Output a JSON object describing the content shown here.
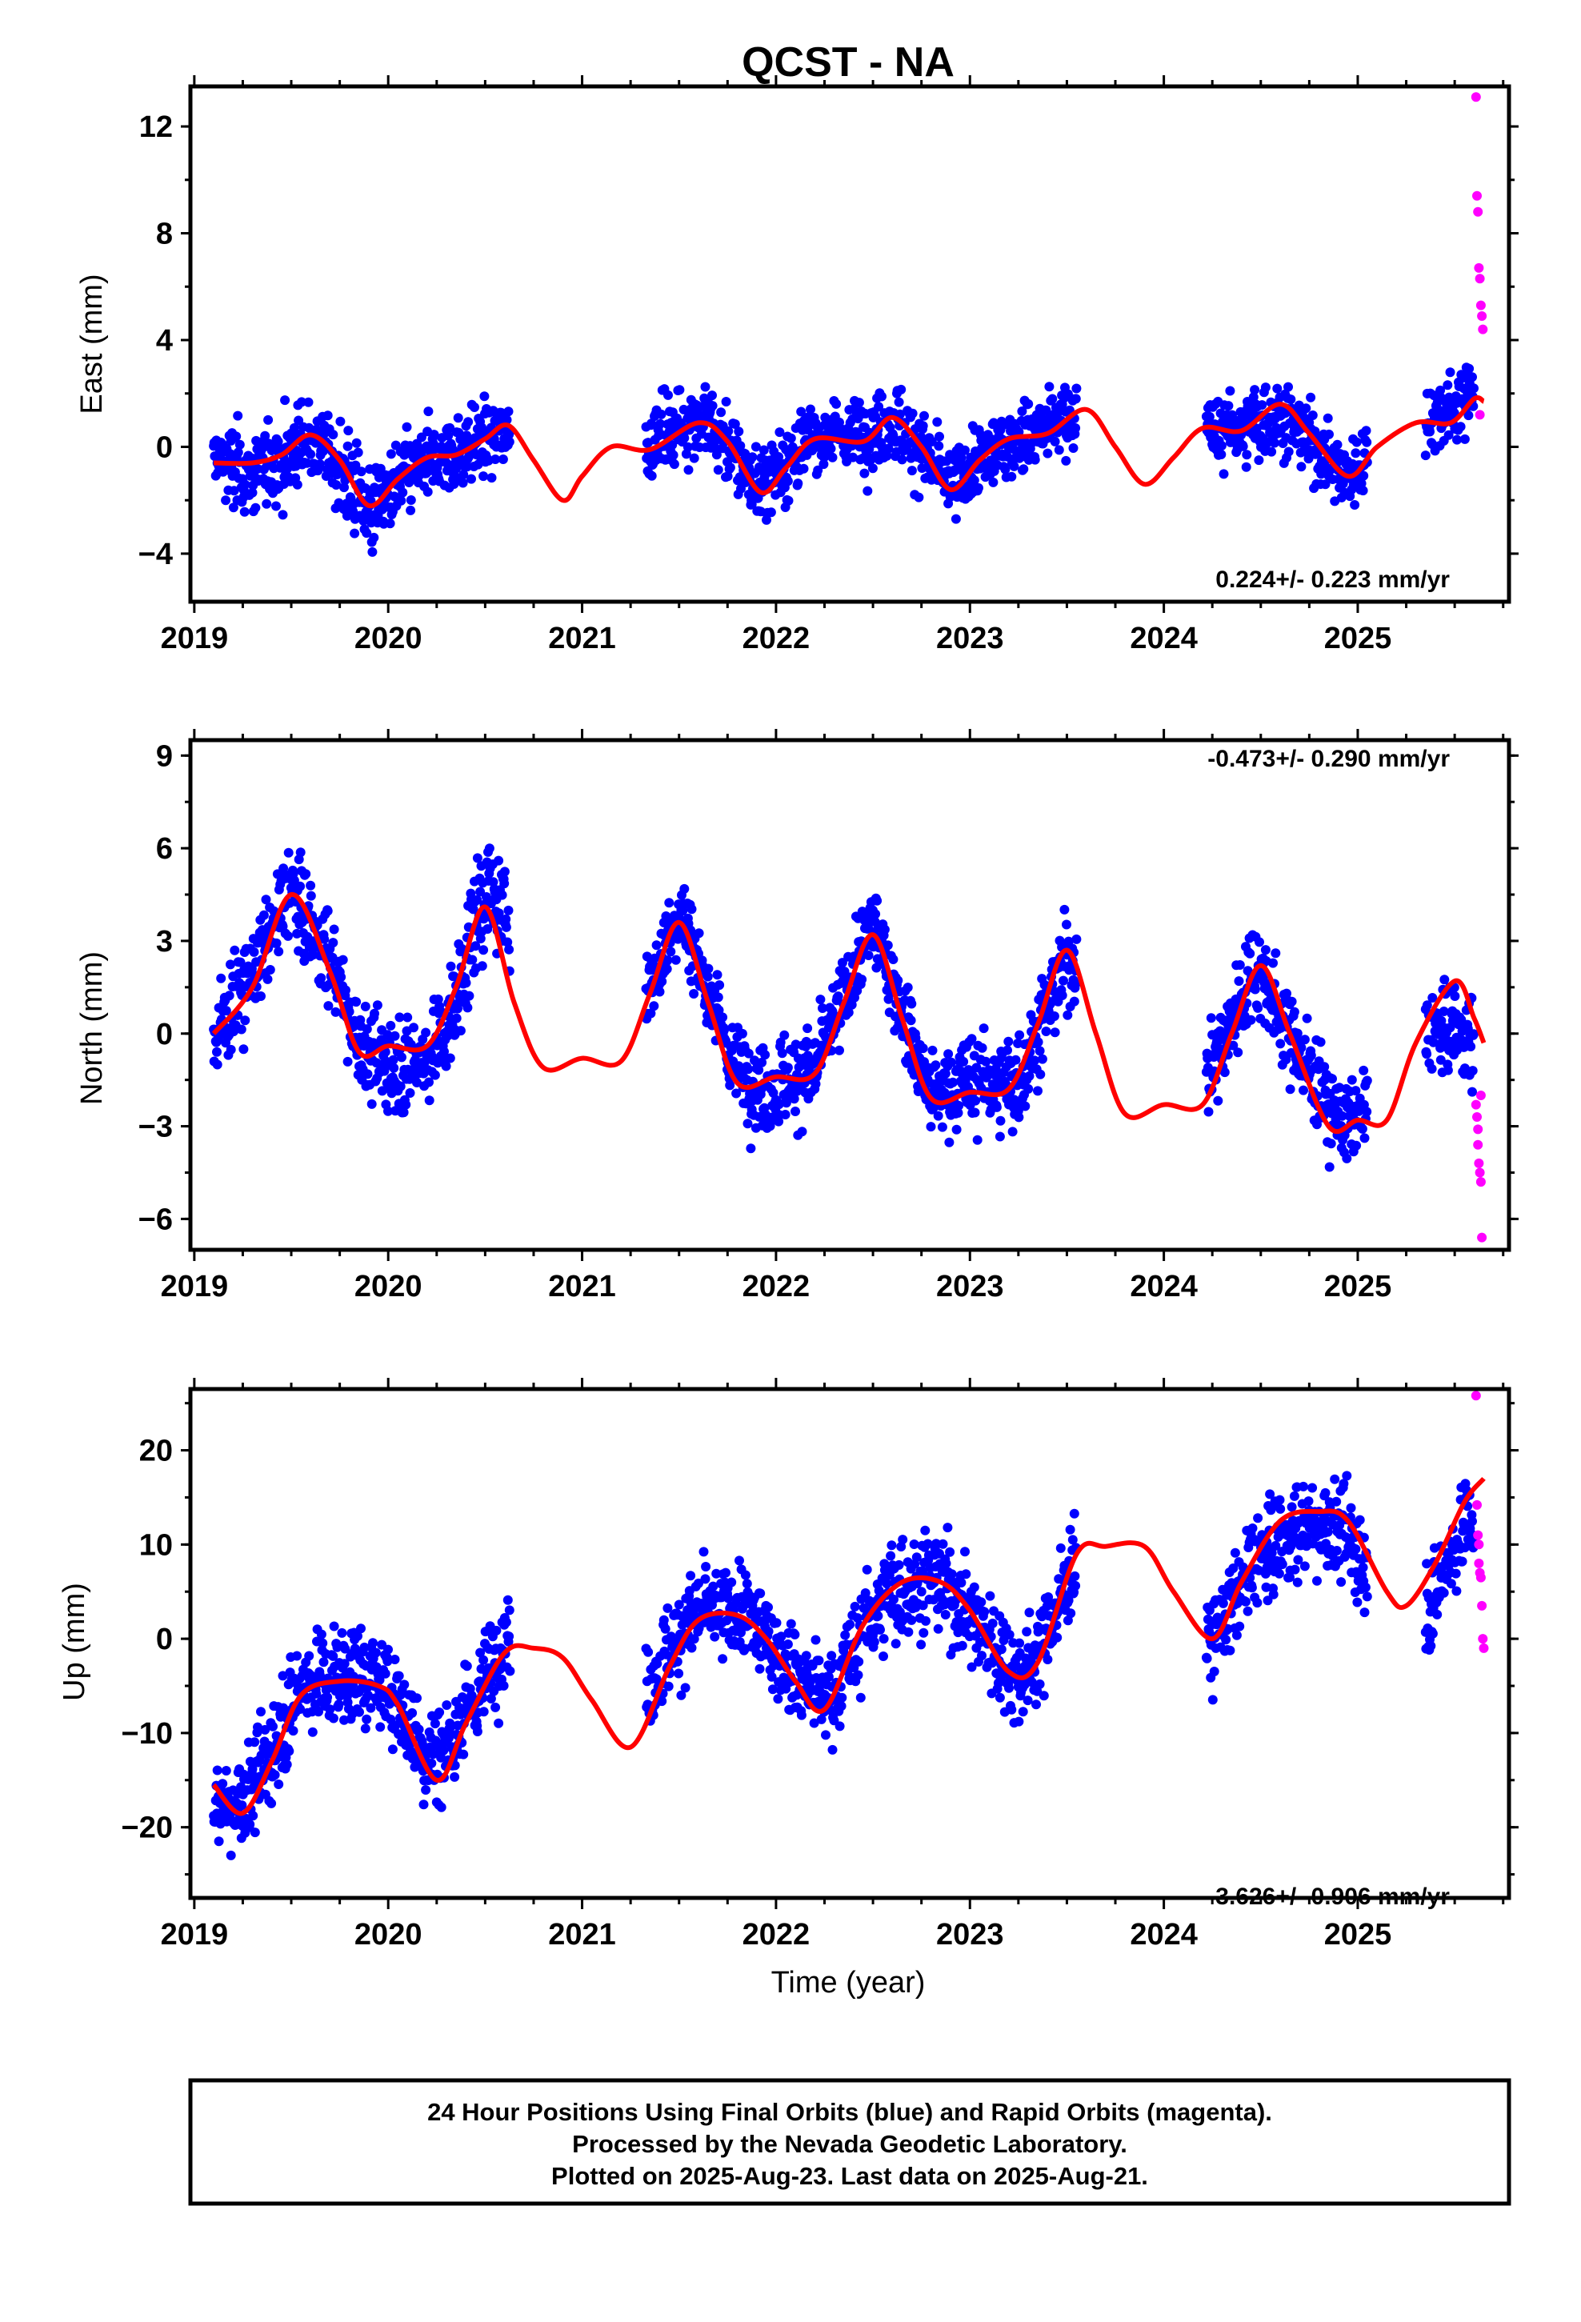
{
  "title": "QCST - NA",
  "xlabel": "Time (year)",
  "footer": {
    "line1": "24 Hour Positions Using Final Orbits (blue) and Rapid Orbits (magenta).",
    "line2": "Processed by the Nevada Geodetic Laboratory.",
    "line3": "Plotted on 2025-Aug-23. Last data on 2025-Aug-21."
  },
  "colors": {
    "final": "#0000ff",
    "rapid": "#ff00ff",
    "model": "#ff0000",
    "frame": "#000000"
  },
  "chart_data": [
    {
      "type": "scatter",
      "id": "east",
      "ylabel": "East (mm)",
      "xlim": [
        2018.98,
        2025.78
      ],
      "ylim": [
        -5.8,
        13.5
      ],
      "yticks": [
        -4,
        0,
        4,
        8,
        12
      ],
      "xticks": [
        2019,
        2020,
        2021,
        2022,
        2023,
        2024,
        2025
      ],
      "grid": false,
      "rate": "0.224+/- 0.223 mm/yr",
      "rate_position": "bottom-right",
      "segments": [
        [
          2019.1,
          2020.63
        ],
        [
          2021.33,
          2023.55
        ],
        [
          2024.22,
          2025.05
        ],
        [
          2025.35,
          2025.6
        ]
      ],
      "model": [
        [
          2019.1,
          -0.6
        ],
        [
          2019.3,
          -0.6
        ],
        [
          2019.45,
          -0.3
        ],
        [
          2019.6,
          0.45
        ],
        [
          2019.75,
          -0.5
        ],
        [
          2019.9,
          -2.2
        ],
        [
          2020.05,
          -1.2
        ],
        [
          2020.2,
          -0.4
        ],
        [
          2020.35,
          -0.3
        ],
        [
          2020.5,
          0.3
        ],
        [
          2020.62,
          0.8
        ],
        [
          2020.75,
          -0.5
        ],
        [
          2020.9,
          -2.0
        ],
        [
          2021.0,
          -1.1
        ],
        [
          2021.15,
          0.0
        ],
        [
          2021.35,
          -0.1
        ],
        [
          2021.6,
          0.9
        ],
        [
          2021.75,
          0.2
        ],
        [
          2021.92,
          -1.7
        ],
        [
          2022.05,
          -0.8
        ],
        [
          2022.2,
          0.3
        ],
        [
          2022.45,
          0.2
        ],
        [
          2022.6,
          1.1
        ],
        [
          2022.75,
          0.0
        ],
        [
          2022.9,
          -1.6
        ],
        [
          2023.05,
          -0.5
        ],
        [
          2023.2,
          0.3
        ],
        [
          2023.4,
          0.5
        ],
        [
          2023.6,
          1.4
        ],
        [
          2023.75,
          0.0
        ],
        [
          2023.9,
          -1.4
        ],
        [
          2024.05,
          -0.4
        ],
        [
          2024.2,
          0.7
        ],
        [
          2024.4,
          0.6
        ],
        [
          2024.6,
          1.6
        ],
        [
          2024.75,
          0.5
        ],
        [
          2024.95,
          -1.1
        ],
        [
          2025.1,
          0.0
        ],
        [
          2025.3,
          0.9
        ],
        [
          2025.48,
          0.9
        ],
        [
          2025.6,
          1.8
        ],
        [
          2025.65,
          1.7
        ]
      ],
      "final_offsets": [
        [
          2019.1,
          -0.2,
          1.0
        ],
        [
          2019.3,
          -1.5,
          1.3
        ],
        [
          2019.6,
          0.4,
          1.1
        ],
        [
          2019.9,
          -2.4,
          1.5
        ],
        [
          2020.15,
          -0.9,
          1.0
        ],
        [
          2020.4,
          0.1,
          1.1
        ],
        [
          2020.62,
          0.5,
          1.1
        ],
        [
          2021.35,
          0.3,
          1.1
        ],
        [
          2021.6,
          1.4,
          1.1
        ],
        [
          2021.9,
          -1.5,
          1.2
        ],
        [
          2022.2,
          0.4,
          1.0
        ],
        [
          2022.6,
          0.8,
          1.1
        ],
        [
          2022.9,
          -1.3,
          1.1
        ],
        [
          2023.2,
          0.2,
          1.1
        ],
        [
          2023.55,
          1.5,
          1.1
        ],
        [
          2024.22,
          0.4,
          1.0
        ],
        [
          2024.6,
          0.9,
          1.0
        ],
        [
          2024.95,
          -1.0,
          1.0
        ],
        [
          2025.05,
          -0.4,
          1.0
        ],
        [
          2025.35,
          1.0,
          1.0
        ],
        [
          2025.6,
          2.6,
          1.0
        ]
      ],
      "rapid_points": [
        [
          2025.61,
          13.1
        ],
        [
          2025.615,
          9.4
        ],
        [
          2025.62,
          8.8
        ],
        [
          2025.625,
          6.7
        ],
        [
          2025.63,
          6.3
        ],
        [
          2025.635,
          5.3
        ],
        [
          2025.64,
          4.9
        ],
        [
          2025.645,
          4.4
        ],
        [
          2025.63,
          1.2
        ]
      ]
    },
    {
      "type": "scatter",
      "id": "north",
      "ylabel": "North (mm)",
      "xlim": [
        2018.98,
        2025.78
      ],
      "ylim": [
        -7.0,
        9.5
      ],
      "yticks": [
        -6,
        -3,
        0,
        3,
        6,
        9
      ],
      "xticks": [
        2019,
        2020,
        2021,
        2022,
        2023,
        2024,
        2025
      ],
      "grid": false,
      "rate": "-0.473+/- 0.290 mm/yr",
      "rate_position": "top-right",
      "segments": [
        [
          2019.1,
          2020.63
        ],
        [
          2021.33,
          2023.55
        ],
        [
          2024.22,
          2025.05
        ],
        [
          2025.35,
          2025.6
        ]
      ],
      "model": [
        [
          2019.1,
          0.0
        ],
        [
          2019.3,
          1.5
        ],
        [
          2019.5,
          4.5
        ],
        [
          2019.7,
          2.0
        ],
        [
          2019.85,
          -0.6
        ],
        [
          2020.0,
          -0.4
        ],
        [
          2020.2,
          -0.4
        ],
        [
          2020.35,
          1.5
        ],
        [
          2020.5,
          4.1
        ],
        [
          2020.65,
          1.0
        ],
        [
          2020.8,
          -1.1
        ],
        [
          2021.0,
          -0.8
        ],
        [
          2021.2,
          -0.9
        ],
        [
          2021.35,
          1.3
        ],
        [
          2021.5,
          3.6
        ],
        [
          2021.65,
          1.0
        ],
        [
          2021.8,
          -1.6
        ],
        [
          2022.0,
          -1.4
        ],
        [
          2022.2,
          -1.3
        ],
        [
          2022.35,
          1.0
        ],
        [
          2022.5,
          3.2
        ],
        [
          2022.65,
          0.5
        ],
        [
          2022.8,
          -2.1
        ],
        [
          2023.0,
          -1.9
        ],
        [
          2023.2,
          -1.8
        ],
        [
          2023.35,
          0.3
        ],
        [
          2023.5,
          2.7
        ],
        [
          2023.65,
          0.0
        ],
        [
          2023.8,
          -2.6
        ],
        [
          2024.0,
          -2.3
        ],
        [
          2024.2,
          -2.3
        ],
        [
          2024.35,
          0.0
        ],
        [
          2024.5,
          2.2
        ],
        [
          2024.65,
          0.0
        ],
        [
          2024.85,
          -3.0
        ],
        [
          2025.0,
          -2.8
        ],
        [
          2025.15,
          -2.8
        ],
        [
          2025.3,
          -0.3
        ],
        [
          2025.5,
          1.7
        ],
        [
          2025.6,
          0.5
        ],
        [
          2025.65,
          -0.3
        ]
      ],
      "final_offsets": [
        [
          2019.1,
          -0.4,
          1.1
        ],
        [
          2019.3,
          2.5,
          1.1
        ],
        [
          2019.5,
          4.7,
          1.2
        ],
        [
          2019.7,
          2.8,
          1.2
        ],
        [
          2019.9,
          -1.0,
          1.1
        ],
        [
          2020.1,
          -1.6,
          1.3
        ],
        [
          2020.3,
          -0.5,
          1.2
        ],
        [
          2020.5,
          5.0,
          1.6
        ],
        [
          2020.62,
          5.5,
          1.2
        ],
        [
          2021.35,
          1.5,
          1.1
        ],
        [
          2021.5,
          4.5,
          1.1
        ],
        [
          2021.75,
          -0.3,
          1.1
        ],
        [
          2021.95,
          -2.2,
          1.1
        ],
        [
          2022.2,
          -1.0,
          1.1
        ],
        [
          2022.5,
          4.0,
          1.1
        ],
        [
          2022.8,
          -2.0,
          1.1
        ],
        [
          2023.0,
          -1.2,
          1.2
        ],
        [
          2023.25,
          -1.8,
          1.1
        ],
        [
          2023.55,
          3.0,
          1.1
        ],
        [
          2024.22,
          -1.0,
          1.1
        ],
        [
          2024.45,
          2.4,
          1.2
        ],
        [
          2024.7,
          -0.5,
          1.1
        ],
        [
          2024.95,
          -2.8,
          1.0
        ],
        [
          2025.05,
          -2.0,
          1.0
        ],
        [
          2025.35,
          -0.5,
          1.0
        ],
        [
          2025.6,
          -1.0,
          1.2
        ]
      ],
      "rapid_points": [
        [
          2025.61,
          -2.3
        ],
        [
          2025.615,
          -2.7
        ],
        [
          2025.62,
          -3.6
        ],
        [
          2025.625,
          -4.2
        ],
        [
          2025.63,
          -4.5
        ],
        [
          2025.635,
          -4.8
        ],
        [
          2025.64,
          -6.6
        ],
        [
          2025.62,
          -3.1
        ],
        [
          2025.635,
          -2.0
        ]
      ]
    },
    {
      "type": "scatter",
      "id": "up",
      "ylabel": "Up (mm)",
      "xlim": [
        2018.98,
        2025.78
      ],
      "ylim": [
        -27.5,
        26.5
      ],
      "yticks": [
        -20,
        -10,
        0,
        10,
        20
      ],
      "xticks": [
        2019,
        2020,
        2021,
        2022,
        2023,
        2024,
        2025
      ],
      "grid": false,
      "rate": "3.626+/- 0.906 mm/yr",
      "rate_position": "bottom-right",
      "segments": [
        [
          2019.1,
          2020.63
        ],
        [
          2021.33,
          2023.55
        ],
        [
          2024.22,
          2025.05
        ],
        [
          2025.35,
          2025.6
        ]
      ],
      "model": [
        [
          2019.1,
          -15.5
        ],
        [
          2019.25,
          -18.5
        ],
        [
          2019.4,
          -13.0
        ],
        [
          2019.55,
          -6.0
        ],
        [
          2019.75,
          -4.5
        ],
        [
          2019.95,
          -5.0
        ],
        [
          2020.05,
          -7.0
        ],
        [
          2020.25,
          -15.0
        ],
        [
          2020.4,
          -9.0
        ],
        [
          2020.6,
          -1.5
        ],
        [
          2020.75,
          -1.0
        ],
        [
          2020.9,
          -2.0
        ],
        [
          2021.05,
          -6.5
        ],
        [
          2021.25,
          -11.5
        ],
        [
          2021.45,
          -3.0
        ],
        [
          2021.6,
          2.0
        ],
        [
          2021.8,
          2.5
        ],
        [
          2021.95,
          0.0
        ],
        [
          2022.1,
          -4.5
        ],
        [
          2022.25,
          -7.5
        ],
        [
          2022.45,
          1.5
        ],
        [
          2022.65,
          6.0
        ],
        [
          2022.85,
          6.0
        ],
        [
          2023.0,
          3.0
        ],
        [
          2023.2,
          -3.5
        ],
        [
          2023.35,
          -2.5
        ],
        [
          2023.55,
          9.0
        ],
        [
          2023.7,
          9.8
        ],
        [
          2023.9,
          9.8
        ],
        [
          2024.05,
          5.0
        ],
        [
          2024.25,
          0.0
        ],
        [
          2024.4,
          6.0
        ],
        [
          2024.6,
          12.5
        ],
        [
          2024.8,
          13.5
        ],
        [
          2024.95,
          12.5
        ],
        [
          2025.15,
          5.0
        ],
        [
          2025.25,
          3.5
        ],
        [
          2025.4,
          8.0
        ],
        [
          2025.55,
          14.5
        ],
        [
          2025.65,
          17.0
        ]
      ],
      "final_offsets": [
        [
          2019.1,
          -20.0,
          3.5
        ],
        [
          2019.3,
          -15.0,
          4.0
        ],
        [
          2019.55,
          -4.0,
          4.5
        ],
        [
          2019.8,
          -3.0,
          4.0
        ],
        [
          2020.0,
          -5.0,
          4.0
        ],
        [
          2020.2,
          -12.0,
          4.5
        ],
        [
          2020.4,
          -8.0,
          4.5
        ],
        [
          2020.62,
          2.0,
          3.5
        ],
        [
          2021.35,
          -3.0,
          3.5
        ],
        [
          2021.6,
          4.0,
          3.8
        ],
        [
          2021.85,
          3.0,
          4.0
        ],
        [
          2022.1,
          -3.0,
          4.0
        ],
        [
          2022.3,
          -6.0,
          4.0
        ],
        [
          2022.55,
          4.0,
          4.0
        ],
        [
          2022.8,
          7.0,
          4.0
        ],
        [
          2023.05,
          2.0,
          4.0
        ],
        [
          2023.25,
          -5.0,
          4.0
        ],
        [
          2023.55,
          8.0,
          3.5
        ],
        [
          2024.22,
          -1.0,
          3.5
        ],
        [
          2024.45,
          7.0,
          4.0
        ],
        [
          2024.75,
          11.0,
          4.0
        ],
        [
          2024.95,
          10.0,
          4.0
        ],
        [
          2025.05,
          6.0,
          4.0
        ],
        [
          2025.35,
          0.0,
          4.0
        ],
        [
          2025.6,
          12.0,
          4.0
        ]
      ],
      "rapid_points": [
        [
          2025.61,
          25.8
        ],
        [
          2025.615,
          14.2
        ],
        [
          2025.62,
          11.0
        ],
        [
          2025.625,
          10.0
        ],
        [
          2025.63,
          7.0
        ],
        [
          2025.635,
          6.5
        ],
        [
          2025.64,
          3.5
        ],
        [
          2025.645,
          0.0
        ],
        [
          2025.65,
          -1.0
        ],
        [
          2025.625,
          8.0
        ]
      ]
    }
  ]
}
